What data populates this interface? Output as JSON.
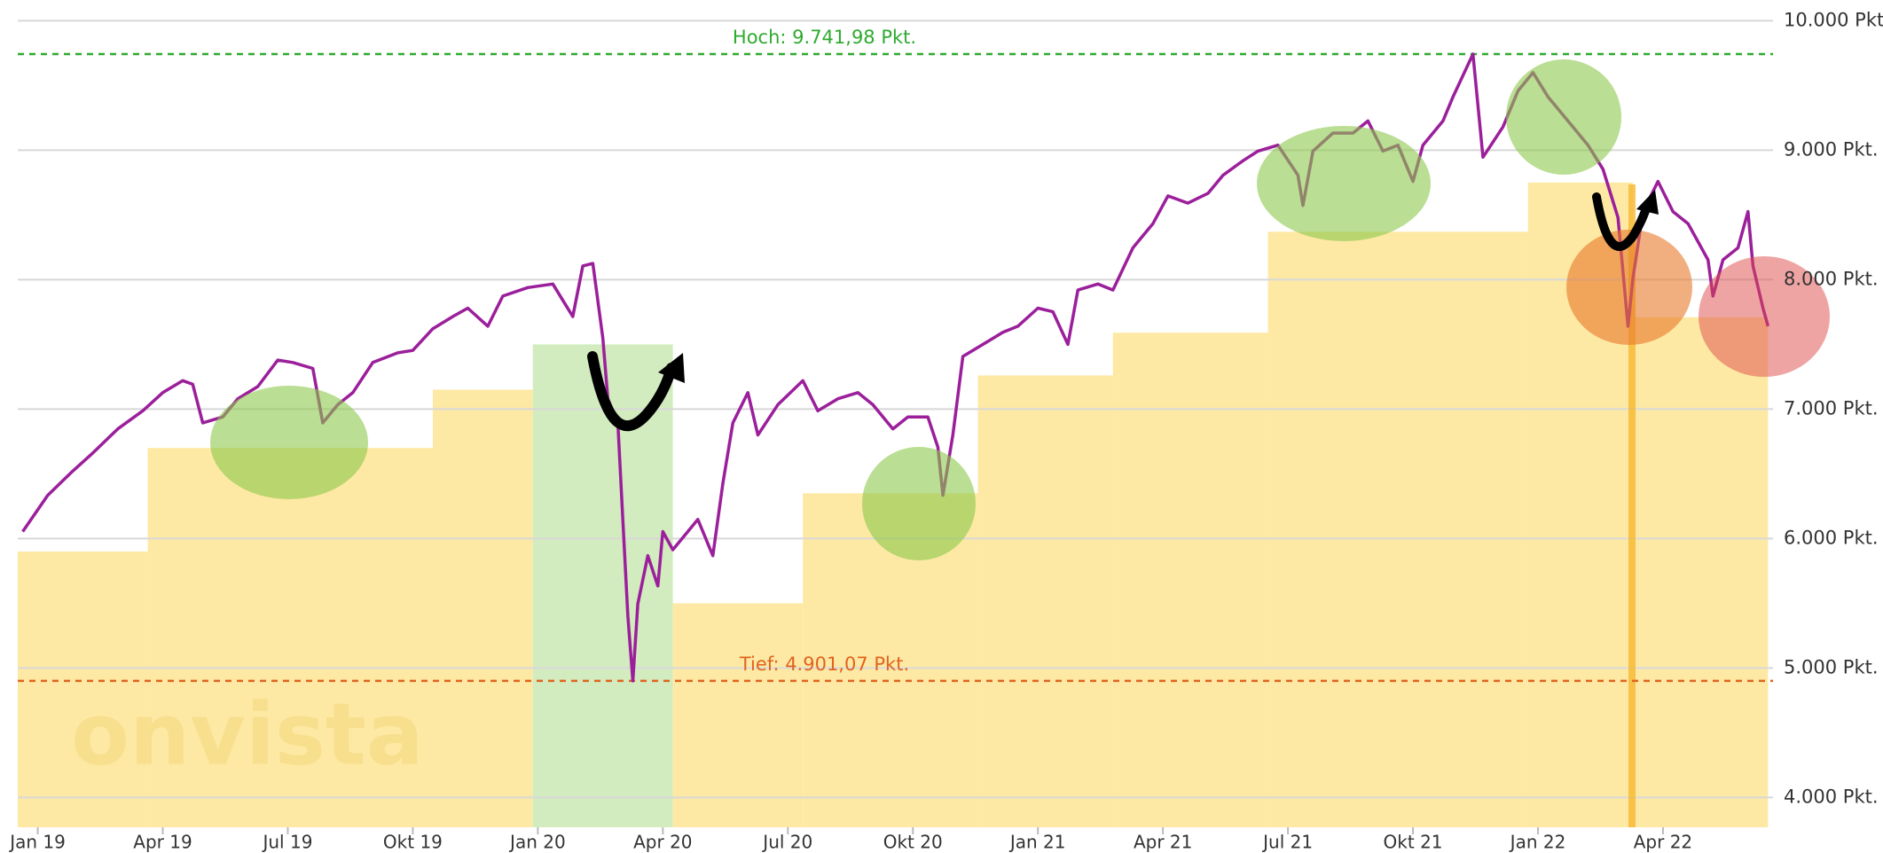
{
  "chart_data": {
    "type": "line",
    "xlim": [
      2018.96,
      2022.47
    ],
    "ylim": [
      3770,
      10160
    ],
    "yticks": [
      {
        "value": 4000,
        "label": "4.000 Pkt."
      },
      {
        "value": 5000,
        "label": "5.000 Pkt."
      },
      {
        "value": 6000,
        "label": "6.000 Pkt."
      },
      {
        "value": 7000,
        "label": "7.000 Pkt."
      },
      {
        "value": 8000,
        "label": "8.000 Pkt."
      },
      {
        "value": 9000,
        "label": "9.000 Pkt."
      },
      {
        "value": 10000,
        "label": "10.000 Pkt."
      }
    ],
    "xticks": [
      {
        "value": 2019.0,
        "label": "Jan 19"
      },
      {
        "value": 2019.25,
        "label": "Apr 19"
      },
      {
        "value": 2019.5,
        "label": "Jul 19"
      },
      {
        "value": 2019.75,
        "label": "Okt 19"
      },
      {
        "value": 2020.0,
        "label": "Jan 20"
      },
      {
        "value": 2020.25,
        "label": "Apr 20"
      },
      {
        "value": 2020.5,
        "label": "Jul 20"
      },
      {
        "value": 2020.75,
        "label": "Okt 20"
      },
      {
        "value": 2021.0,
        "label": "Jan 21"
      },
      {
        "value": 2021.25,
        "label": "Apr 21"
      },
      {
        "value": 2021.5,
        "label": "Jul 21"
      },
      {
        "value": 2021.75,
        "label": "Okt 21"
      },
      {
        "value": 2022.0,
        "label": "Jan 22"
      },
      {
        "value": 2022.25,
        "label": "Apr 22"
      }
    ],
    "grid": true,
    "watermark": "onvista",
    "reference_lines": [
      {
        "value": 9741.98,
        "label": "Hoch: 9.741,98 Pkt.",
        "color": "#2eaa2e"
      },
      {
        "value": 4901.07,
        "label": "Tief: 4.901,07 Pkt.",
        "color": "#e0641e"
      }
    ],
    "bars": [
      {
        "x": [
          2018.96,
          2019.22
        ],
        "value": 5900,
        "color": "#fde79a"
      },
      {
        "x": [
          2019.22,
          2019.79
        ],
        "value": 6700,
        "color": "#fde79a"
      },
      {
        "x": [
          2019.79,
          2019.99
        ],
        "value": 7150,
        "color": "#fde79a"
      },
      {
        "x": [
          2019.99,
          2020.27
        ],
        "value": 7500,
        "color": "#cdeab8"
      },
      {
        "x": [
          2020.27,
          2020.53
        ],
        "value": 5500,
        "color": "#fde79a"
      },
      {
        "x": [
          2020.53,
          2020.88
        ],
        "value": 6350,
        "color": "#fde79a"
      },
      {
        "x": [
          2020.88,
          2021.15
        ],
        "value": 7260,
        "color": "#fde79a"
      },
      {
        "x": [
          2021.15,
          2021.46
        ],
        "value": 7590,
        "color": "#fde79a"
      },
      {
        "x": [
          2021.46,
          2021.98
        ],
        "value": 8370,
        "color": "#fde79a"
      },
      {
        "x": [
          2021.98,
          2022.19
        ],
        "value": 8750,
        "color": "#fde79a"
      },
      {
        "x": [
          2022.19,
          2022.46
        ],
        "value": 7710,
        "color": "#fde79a"
      }
    ],
    "series": [
      {
        "color": "#9b1f9b",
        "x": [
          2018.97,
          2019.02,
          2019.07,
          2019.11,
          2019.16,
          2019.21,
          2019.25,
          2019.29,
          2019.31,
          2019.33,
          2019.37,
          2019.4,
          2019.44,
          2019.48,
          2019.51,
          2019.55,
          2019.57,
          2019.6,
          2019.63,
          2019.67,
          2019.72,
          2019.75,
          2019.79,
          2019.83,
          2019.86,
          2019.9,
          2019.93,
          2019.98,
          2020.03,
          2020.07,
          2020.09,
          2020.11,
          2020.13,
          2020.14,
          2020.16,
          2020.17,
          2020.18,
          2020.19,
          2020.2,
          2020.22,
          2020.24,
          2020.25,
          2020.27,
          2020.3,
          2020.32,
          2020.35,
          2020.37,
          2020.39,
          2020.42,
          2020.44,
          2020.48,
          2020.53,
          2020.56,
          2020.6,
          2020.64,
          2020.67,
          2020.71,
          2020.74,
          2020.78,
          2020.8,
          2020.81,
          2020.83,
          2020.85,
          2020.89,
          2020.93,
          2020.96,
          2021.0,
          2021.03,
          2021.06,
          2021.08,
          2021.12,
          2021.15,
          2021.19,
          2021.23,
          2021.26,
          2021.3,
          2021.34,
          2021.37,
          2021.41,
          2021.44,
          2021.48,
          2021.52,
          2021.53,
          2021.55,
          2021.59,
          2021.63,
          2021.66,
          2021.69,
          2021.72,
          2021.75,
          2021.77,
          2021.81,
          2021.83,
          2021.87,
          2021.89,
          2021.93,
          2021.96,
          2021.99,
          2022.02,
          2022.06,
          2022.1,
          2022.13,
          2022.16,
          2022.18,
          2022.19,
          2022.21,
          2022.24,
          2022.27,
          2022.3,
          2022.34,
          2022.35,
          2022.37,
          2022.4,
          2022.42,
          2022.43,
          2022.45,
          2022.46
        ],
        "values": [
          6054,
          6334,
          6521,
          6661,
          6847,
          6987,
          7127,
          7220,
          7192,
          6894,
          6940,
          7080,
          7174,
          7379,
          7360,
          7314,
          6894,
          7034,
          7127,
          7360,
          7435,
          7453,
          7621,
          7715,
          7780,
          7640,
          7873,
          7939,
          7966,
          7715,
          8106,
          8125,
          7547,
          7080,
          6894,
          6148,
          5401,
          4901,
          5495,
          5868,
          5634,
          6054,
          5914,
          6054,
          6148,
          5868,
          6427,
          6894,
          7127,
          6800,
          7034,
          7220,
          6987,
          7080,
          7127,
          7034,
          6847,
          6940,
          6940,
          6707,
          6334,
          6800,
          7407,
          7500,
          7593,
          7640,
          7780,
          7752,
          7500,
          7920,
          7966,
          7920,
          8246,
          8433,
          8647,
          8591,
          8666,
          8806,
          8918,
          8993,
          9039,
          8806,
          8573,
          8993,
          9132,
          9132,
          9226,
          8993,
          9039,
          8759,
          9039,
          9226,
          9412,
          9742,
          8946,
          9179,
          9459,
          9599,
          9412,
          9226,
          9039,
          8853,
          8480,
          7640,
          8013,
          8526,
          8759,
          8526,
          8433,
          8153,
          7873,
          8153,
          8246,
          8526,
          8106,
          7780,
          7640
        ]
      }
    ]
  }
}
